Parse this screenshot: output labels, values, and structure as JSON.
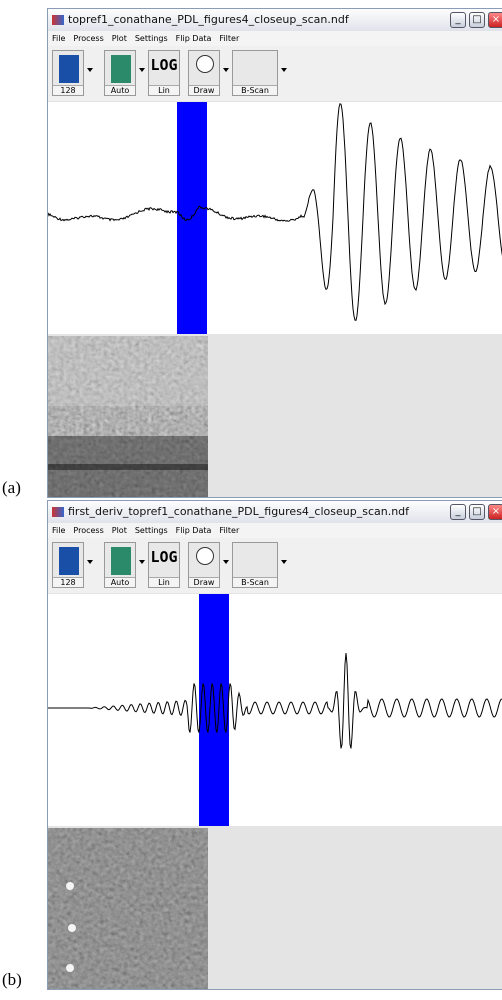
{
  "windows": [
    {
      "label": "(a)",
      "title": "topref1_conathane_PDL_figures4_closeup_scan.ndf",
      "menu": [
        "File",
        "Process",
        "Plot",
        "Settings",
        "Flip Data",
        "Filter"
      ],
      "toolbar": {
        "depth": "128",
        "auto": "Auto",
        "log": "LOG",
        "lin": "Lin",
        "draw": "Draw",
        "bscan": "B-Scan"
      }
    },
    {
      "label": "(b)",
      "title": "first_deriv_topref1_conathane_PDL_figures4_closeup_scan.ndf",
      "menu": [
        "File",
        "Process",
        "Plot",
        "Settings",
        "Flip Data",
        "Filter"
      ],
      "toolbar": {
        "depth": "128",
        "auto": "Auto",
        "log": "LOG",
        "lin": "Lin",
        "draw": "Draw",
        "bscan": "B-Scan"
      }
    }
  ]
}
